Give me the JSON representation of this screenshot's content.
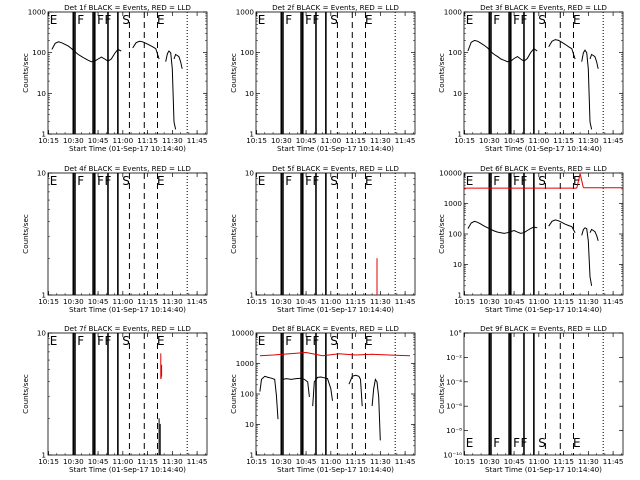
{
  "colors": {
    "events": "#000000",
    "lld": "#e00000",
    "background": "#ffffff"
  },
  "common": {
    "xlabel": "Start Time (01-Sep-17 10:14:40)",
    "ylabel": "Counts/sec",
    "x_ticks": [
      "10:15",
      "10:30",
      "10:45",
      "11:00",
      "11:15",
      "11:30",
      "11:45"
    ],
    "x_range": [
      "10:14:40",
      "11:51:00"
    ],
    "markers": [
      {
        "label": "E",
        "time": "10:18:00"
      },
      {
        "label": "F",
        "time": "10:34:30"
      },
      {
        "label": "F",
        "time": "10:46:30"
      },
      {
        "label": "F",
        "time": "10:51:00"
      },
      {
        "label": "S",
        "time": "11:02:00"
      },
      {
        "label": "E",
        "time": "11:23:00"
      }
    ],
    "solid_lines": [
      "10:30:00",
      "10:31:00",
      "10:42:00",
      "10:43:00",
      "10:51:00",
      "10:57:00"
    ],
    "dashed_lines": [
      "11:04:00",
      "11:13:00",
      "11:21:00"
    ],
    "dotted_lines": [
      "11:39:00"
    ]
  },
  "chart_data": [
    {
      "type": "line",
      "title": "Det 1f BLACK = Events, RED = LLD",
      "scale": "log",
      "ylim": [
        1,
        1000
      ],
      "y_ticks": [
        "1",
        "10",
        "100",
        "1000"
      ],
      "series": [
        {
          "color": "black",
          "segments": [
            {
              "x": [
                "10:17",
                "10:19",
                "10:21",
                "10:23",
                "10:25",
                "10:27",
                "10:29",
                "10:31",
                "10:33",
                "10:35",
                "10:37",
                "10:39",
                "10:41",
                "10:43",
                "10:45",
                "10:47",
                "10:49",
                "10:51",
                "10:53",
                "10:55",
                "10:57",
                "10:59"
              ],
              "y": [
                120,
                170,
                185,
                175,
                160,
                145,
                125,
                105,
                90,
                80,
                72,
                65,
                60,
                62,
                70,
                78,
                70,
                62,
                70,
                95,
                120,
                110
              ]
            },
            {
              "x": [
                "11:06",
                "11:08",
                "11:10",
                "11:12",
                "11:14",
                "11:16",
                "11:18",
                "11:20",
                "11:22"
              ],
              "y": [
                130,
                175,
                190,
                185,
                170,
                155,
                140,
                125,
                70
              ]
            },
            {
              "x": [
                "11:26",
                "11:27",
                "11:28",
                "11:29",
                "11:30",
                "11:31",
                "11:32"
              ],
              "y": [
                60,
                95,
                110,
                100,
                40,
                2,
                1.3
              ]
            },
            {
              "x": [
                "11:31",
                "11:32",
                "11:33",
                "11:34",
                "11:35",
                "11:36"
              ],
              "y": [
                70,
                90,
                85,
                80,
                60,
                40
              ]
            }
          ]
        }
      ]
    },
    {
      "type": "line",
      "title": "Det 2f BLACK = Events, RED = LLD",
      "scale": "log",
      "ylim": [
        1,
        1000
      ],
      "y_ticks": [
        "1",
        "10",
        "100",
        "1000"
      ],
      "series": []
    },
    {
      "type": "line",
      "title": "Det 3f BLACK = Events, RED = LLD",
      "scale": "log",
      "ylim": [
        1,
        1000
      ],
      "y_ticks": [
        "1",
        "10",
        "100",
        "1000"
      ],
      "series": [
        {
          "color": "black",
          "segments": [
            {
              "x": [
                "10:17",
                "10:19",
                "10:21",
                "10:23",
                "10:25",
                "10:27",
                "10:29",
                "10:31",
                "10:33",
                "10:35",
                "10:37",
                "10:39",
                "10:41",
                "10:43",
                "10:45",
                "10:47",
                "10:49",
                "10:51",
                "10:53",
                "10:55",
                "10:57",
                "10:59"
              ],
              "y": [
                110,
                180,
                200,
                190,
                170,
                150,
                130,
                105,
                90,
                80,
                70,
                65,
                60,
                62,
                72,
                80,
                70,
                62,
                72,
                100,
                125,
                110
              ]
            },
            {
              "x": [
                "11:06",
                "11:08",
                "11:10",
                "11:12",
                "11:14",
                "11:16",
                "11:18",
                "11:20",
                "11:22"
              ],
              "y": [
                140,
                190,
                210,
                200,
                180,
                160,
                140,
                125,
                70
              ]
            },
            {
              "x": [
                "11:26",
                "11:27",
                "11:28",
                "11:29",
                "11:30",
                "11:31",
                "11:32"
              ],
              "y": [
                60,
                100,
                115,
                100,
                40,
                2,
                1.3
              ]
            },
            {
              "x": [
                "11:31",
                "11:32",
                "11:33",
                "11:34",
                "11:35",
                "11:36"
              ],
              "y": [
                70,
                90,
                85,
                80,
                60,
                40
              ]
            }
          ]
        }
      ]
    },
    {
      "type": "line",
      "title": "Det 4f BLACK = Events, RED = LLD",
      "scale": "log",
      "ylim": [
        1,
        10
      ],
      "y_ticks": [
        "1",
        "10"
      ],
      "series": []
    },
    {
      "type": "line",
      "title": "Det 5f BLACK = Events, RED = LLD",
      "scale": "log",
      "ylim": [
        1,
        10
      ],
      "y_ticks": [
        "1",
        "10"
      ],
      "series": [
        {
          "color": "red",
          "segments": [
            {
              "x": [
                "11:28",
                "11:28"
              ],
              "y": [
                1,
                2
              ]
            }
          ]
        }
      ]
    },
    {
      "type": "line",
      "title": "Det 6f BLACK = Events, RED = LLD",
      "scale": "log",
      "ylim": [
        1,
        10000
      ],
      "y_ticks": [
        "1",
        "10",
        "100",
        "1000",
        "10000"
      ],
      "series": [
        {
          "color": "black",
          "segments": [
            {
              "x": [
                "10:17",
                "10:19",
                "10:21",
                "10:23",
                "10:25",
                "10:27",
                "10:29",
                "10:31",
                "10:33",
                "10:35",
                "10:37",
                "10:39",
                "10:41",
                "10:43",
                "10:45",
                "10:47",
                "10:49",
                "10:51",
                "10:53",
                "10:55",
                "10:57",
                "10:59"
              ],
              "y": [
                150,
                230,
                260,
                240,
                210,
                180,
                160,
                140,
                125,
                115,
                110,
                105,
                110,
                120,
                130,
                115,
                105,
                110,
                130,
                150,
                170,
                160
              ]
            },
            {
              "x": [
                "11:06",
                "11:08",
                "11:10",
                "11:12",
                "11:14",
                "11:16",
                "11:18",
                "11:20",
                "11:22"
              ],
              "y": [
                180,
                260,
                290,
                270,
                240,
                210,
                190,
                175,
                110
              ]
            },
            {
              "x": [
                "11:26",
                "11:27",
                "11:28",
                "11:29",
                "11:30",
                "11:31",
                "11:32"
              ],
              "y": [
                90,
                140,
                160,
                150,
                60,
                4,
                2
              ]
            },
            {
              "x": [
                "11:31",
                "11:32",
                "11:33",
                "11:34",
                "11:35",
                "11:36"
              ],
              "y": [
                110,
                140,
                130,
                120,
                90,
                60
              ]
            }
          ]
        },
        {
          "color": "red",
          "segments": [
            {
              "x": [
                "10:14:40",
                "11:23:00"
              ],
              "y": [
                3200,
                3200
              ]
            },
            {
              "x": [
                "11:23:00",
                "11:25:00",
                "11:27:00"
              ],
              "y": [
                3200,
                9500,
                3300
              ]
            },
            {
              "x": [
                "11:27:00",
                "11:51:00"
              ],
              "y": [
                3300,
                3300
              ]
            }
          ]
        }
      ]
    },
    {
      "type": "line",
      "title": "Det 7f BLACK = Events, RED = LLD",
      "scale": "log",
      "ylim": [
        1,
        10
      ],
      "y_ticks": [
        "1",
        "10"
      ],
      "series": [
        {
          "color": "red",
          "segments": [
            {
              "x": [
                "11:23:00",
                "11:23:00",
                "11:23:30",
                "11:23:30"
              ],
              "y": [
                6.8,
                4.2,
                4.5,
                5.5
              ]
            }
          ]
        },
        {
          "color": "black",
          "segments": [
            {
              "x": [
                "11:22:00",
                "11:22:00"
              ],
              "y": [
                1,
                2
              ]
            },
            {
              "x": [
                "11:22:40",
                "11:22:40"
              ],
              "y": [
                1,
                1.8
              ]
            }
          ]
        }
      ]
    },
    {
      "type": "line",
      "title": "Det 8f BLACK = Events, RED = LLD",
      "scale": "log",
      "ylim": [
        1,
        10000
      ],
      "y_ticks": [
        "1",
        "10",
        "100",
        "1000",
        "10000"
      ],
      "series": [
        {
          "color": "red",
          "segments": [
            {
              "x": [
                "10:17",
                "10:25",
                "10:35",
                "10:45",
                "10:55",
                "11:05",
                "11:15",
                "11:25",
                "11:35",
                "11:48"
              ],
              "y": [
                1800,
                1900,
                2100,
                2300,
                1800,
                2100,
                1900,
                2000,
                1900,
                1800
              ]
            }
          ]
        },
        {
          "color": "black",
          "segments": [
            {
              "x": [
                "10:17",
                "10:18",
                "10:20",
                "10:22",
                "10:24",
                "10:26",
                "10:27",
                "10:28"
              ],
              "y": [
                120,
                300,
                380,
                350,
                330,
                300,
                90,
                15
              ]
            },
            {
              "x": [
                "10:31",
                "10:33",
                "10:36",
                "10:39",
                "10:42",
                "10:44",
                "10:46",
                "10:47"
              ],
              "y": [
                300,
                320,
                300,
                320,
                330,
                300,
                250,
                80
              ]
            },
            {
              "x": [
                "10:49",
                "10:50",
                "10:52",
                "10:54",
                "10:56",
                "10:58",
                "11:00",
                "11:01"
              ],
              "y": [
                40,
                250,
                350,
                360,
                340,
                320,
                150,
                60
              ]
            },
            {
              "x": [
                "11:11",
                "11:13",
                "11:15",
                "11:17",
                "11:18",
                "11:19"
              ],
              "y": [
                210,
                380,
                410,
                380,
                300,
                40
              ]
            },
            {
              "x": [
                "11:25",
                "11:26",
                "11:27",
                "11:28",
                "11:29",
                "11:30"
              ],
              "y": [
                40,
                150,
                300,
                250,
                80,
                3
              ]
            }
          ]
        }
      ]
    },
    {
      "type": "line",
      "title": "Det 9f BLACK = Events, RED = LLD",
      "scale": "log",
      "ylim": [
        1,
        1e-10
      ],
      "y_ticks": [
        "10°",
        "10⁻²",
        "10⁻⁴",
        "10⁻⁶",
        "10⁻⁸",
        "10⁻¹⁰"
      ],
      "y_ticks_inverted": true,
      "series": []
    }
  ]
}
